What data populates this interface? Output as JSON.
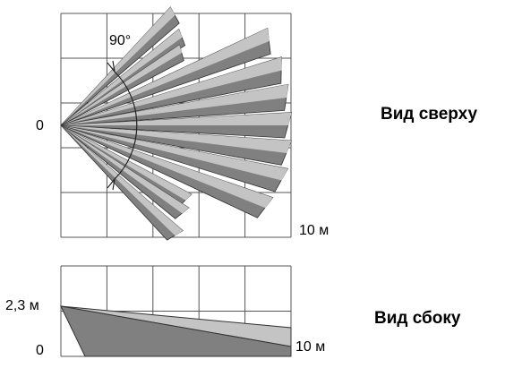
{
  "top_view": {
    "angle_label": "90°",
    "origin_label": "0",
    "distance_label": "10 м",
    "title": "Вид сверху"
  },
  "side_view": {
    "height_label": "2,3 м",
    "origin_label": "0",
    "distance_label": "10 м",
    "title": "Вид сбоку"
  }
}
